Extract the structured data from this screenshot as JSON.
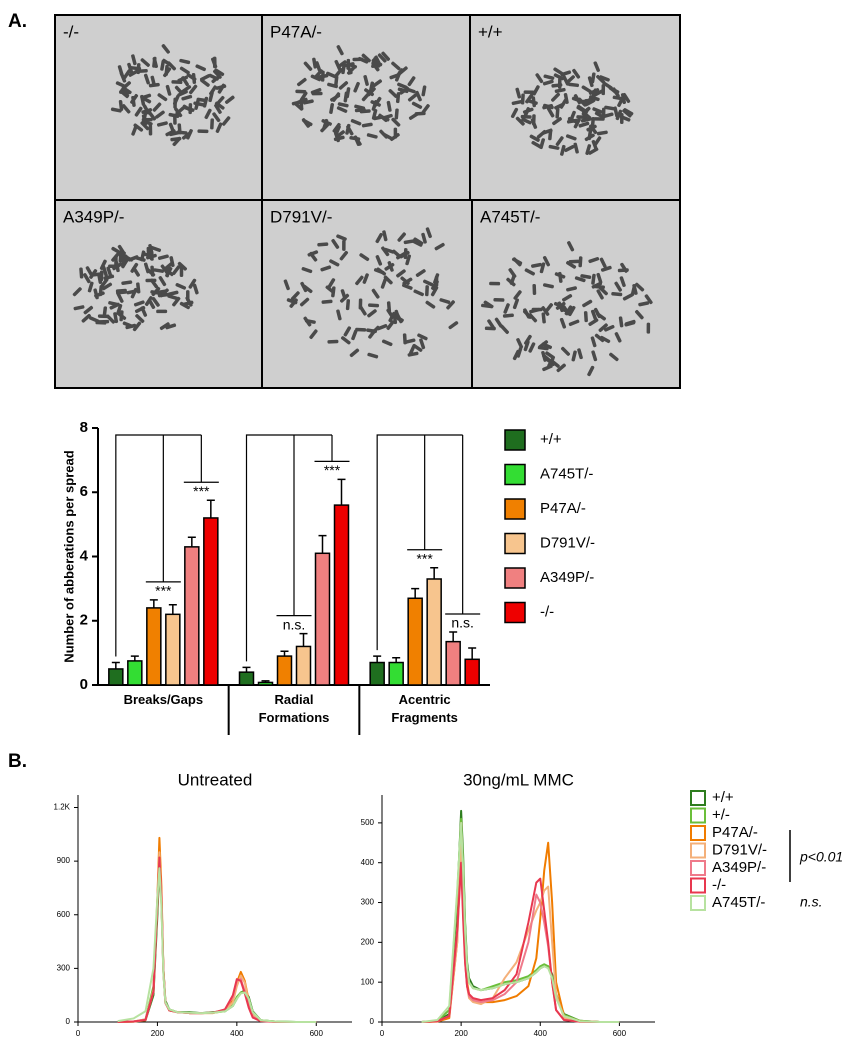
{
  "panel_labels": [
    "A.",
    "B."
  ],
  "micrographs": [
    "-/-",
    "P47A/-",
    "+/+",
    "A349P/-",
    "D791V/-",
    "A745T/-"
  ],
  "chart_data": [
    {
      "type": "bar",
      "ylabel": "Number of abberations per spread",
      "categories": [
        "Breaks/Gaps",
        "Radial Formations",
        "Acentric Fragments"
      ],
      "series": [
        {
          "name": "+/+",
          "color": "#1f6e1f",
          "values": [
            0.5,
            0.4,
            0.7
          ],
          "errors": [
            0.2,
            0.15,
            0.2
          ]
        },
        {
          "name": "A745T/-",
          "color": "#33dd33",
          "values": [
            0.75,
            0.08,
            0.7
          ],
          "errors": [
            0.15,
            0.05,
            0.15
          ]
        },
        {
          "name": "P47A/-",
          "color": "#f08000",
          "values": [
            2.4,
            0.9,
            2.7
          ],
          "errors": [
            0.25,
            0.15,
            0.3
          ]
        },
        {
          "name": "D791V/-",
          "color": "#f7c58e",
          "values": [
            2.2,
            1.2,
            3.3
          ],
          "errors": [
            0.3,
            0.4,
            0.35
          ]
        },
        {
          "name": "A349P/-",
          "color": "#f08080",
          "values": [
            4.3,
            4.1,
            1.35
          ],
          "errors": [
            0.3,
            0.55,
            0.3
          ]
        },
        {
          "name": "-/-",
          "color": "#ee0000",
          "values": [
            5.2,
            5.6,
            0.8
          ],
          "errors": [
            0.55,
            0.8,
            0.35
          ]
        }
      ],
      "ylim": [
        0,
        8
      ],
      "yticks": [
        0,
        2,
        4,
        6,
        8
      ],
      "legend": "right",
      "annotations": [
        "***",
        "***",
        "n.s.",
        "***",
        "***",
        "n.s."
      ]
    },
    {
      "type": "line",
      "title": "Untreated",
      "x": [
        100,
        140,
        170,
        190,
        200,
        205,
        210,
        215,
        220,
        230,
        250,
        280,
        310,
        340,
        370,
        390,
        400,
        410,
        420,
        430,
        440,
        460,
        500,
        550,
        600
      ],
      "series": [
        {
          "color": "#2e7d1e",
          "values": [
            0,
            2,
            10,
            150,
            600,
            880,
            700,
            300,
            120,
            70,
            55,
            55,
            50,
            55,
            60,
            90,
            130,
            165,
            175,
            140,
            60,
            10,
            2,
            0,
            0
          ]
        },
        {
          "color": "#6bbf3a",
          "values": [
            0,
            3,
            15,
            200,
            650,
            890,
            680,
            280,
            110,
            70,
            55,
            52,
            50,
            52,
            60,
            95,
            140,
            165,
            170,
            130,
            55,
            10,
            2,
            0,
            0
          ]
        },
        {
          "color": "#f07c00",
          "values": [
            0,
            2,
            10,
            170,
            700,
            1030,
            760,
            300,
            110,
            65,
            55,
            50,
            50,
            50,
            65,
            120,
            220,
            280,
            230,
            120,
            40,
            8,
            1,
            0,
            0
          ]
        },
        {
          "color": "#f4b07a",
          "values": [
            0,
            3,
            15,
            180,
            680,
            950,
            700,
            290,
            110,
            65,
            55,
            50,
            50,
            52,
            65,
            110,
            200,
            260,
            220,
            110,
            40,
            8,
            1,
            0,
            0
          ]
        },
        {
          "color": "#ef7a8a",
          "values": [
            0,
            3,
            12,
            170,
            660,
            900,
            680,
            280,
            105,
            65,
            55,
            50,
            50,
            52,
            70,
            140,
            230,
            240,
            170,
            90,
            30,
            6,
            1,
            0,
            0
          ]
        },
        {
          "color": "#e8384f",
          "values": [
            0,
            3,
            12,
            170,
            680,
            920,
            700,
            290,
            110,
            65,
            55,
            50,
            50,
            52,
            70,
            150,
            240,
            230,
            160,
            80,
            25,
            5,
            1,
            0,
            0
          ]
        },
        {
          "color": "#b7e2a0",
          "values": [
            5,
            20,
            60,
            300,
            700,
            860,
            650,
            270,
            110,
            70,
            55,
            52,
            50,
            52,
            60,
            90,
            130,
            160,
            165,
            130,
            55,
            10,
            2,
            0,
            0
          ]
        }
      ],
      "xlim": [
        0,
        690
      ],
      "xticks": [
        0,
        200,
        400,
        600
      ],
      "ylim": [
        0,
        1270
      ],
      "yticks": [
        0,
        300,
        600,
        900,
        {
          "value": 1200,
          "label": "1.2K"
        }
      ]
    },
    {
      "type": "line",
      "title": "30ng/mL MMC",
      "x": [
        100,
        140,
        170,
        190,
        200,
        205,
        210,
        215,
        220,
        230,
        250,
        280,
        310,
        340,
        370,
        390,
        400,
        410,
        420,
        430,
        440,
        460,
        500,
        550,
        600
      ],
      "series": [
        {
          "name": "+/+",
          "color": "#2e7d1e",
          "values": [
            0,
            2,
            20,
            300,
            530,
            420,
            250,
            150,
            110,
            90,
            80,
            85,
            95,
            100,
            110,
            125,
            135,
            140,
            140,
            120,
            70,
            20,
            3,
            0,
            0
          ]
        },
        {
          "name": "+/-",
          "color": "#6bbf3a",
          "values": [
            0,
            3,
            30,
            320,
            510,
            400,
            240,
            140,
            100,
            85,
            80,
            90,
            100,
            105,
            115,
            130,
            140,
            145,
            140,
            115,
            65,
            18,
            3,
            0,
            0
          ]
        },
        {
          "name": "P47A/-",
          "color": "#f07c00",
          "values": [
            0,
            1,
            10,
            200,
            500,
            350,
            180,
            100,
            70,
            55,
            50,
            50,
            55,
            65,
            90,
            160,
            260,
            380,
            450,
            300,
            100,
            15,
            2,
            0,
            0
          ]
        },
        {
          "name": "D791V/-",
          "color": "#f4b07a",
          "values": [
            0,
            2,
            15,
            200,
            450,
            300,
            160,
            90,
            60,
            50,
            45,
            60,
            110,
            150,
            230,
            280,
            300,
            330,
            340,
            200,
            70,
            10,
            1,
            0,
            0
          ]
        },
        {
          "name": "A349P/-",
          "color": "#ef7a8a",
          "values": [
            0,
            2,
            15,
            220,
            400,
            280,
            150,
            90,
            65,
            55,
            50,
            55,
            70,
            100,
            200,
            320,
            300,
            250,
            190,
            100,
            30,
            5,
            1,
            0,
            0
          ]
        },
        {
          "name": "-/-",
          "color": "#e8384f",
          "values": [
            0,
            2,
            15,
            230,
            400,
            260,
            150,
            90,
            70,
            60,
            55,
            60,
            80,
            120,
            250,
            350,
            360,
            280,
            200,
            100,
            30,
            5,
            1,
            0,
            0
          ]
        },
        {
          "name": "A745T/-",
          "color": "#b7e2a0",
          "values": [
            0,
            5,
            40,
            330,
            500,
            380,
            230,
            140,
            100,
            85,
            80,
            85,
            95,
            100,
            110,
            125,
            135,
            140,
            135,
            110,
            60,
            15,
            2,
            0,
            0
          ]
        }
      ],
      "xlim": [
        0,
        690
      ],
      "xticks": [
        0,
        200,
        400,
        600
      ],
      "ylim": [
        0,
        570
      ],
      "yticks": [
        0,
        100,
        200,
        300,
        400,
        500
      ],
      "legend": "right",
      "legend_notes": [
        "p<0.01",
        "n.s."
      ]
    }
  ]
}
